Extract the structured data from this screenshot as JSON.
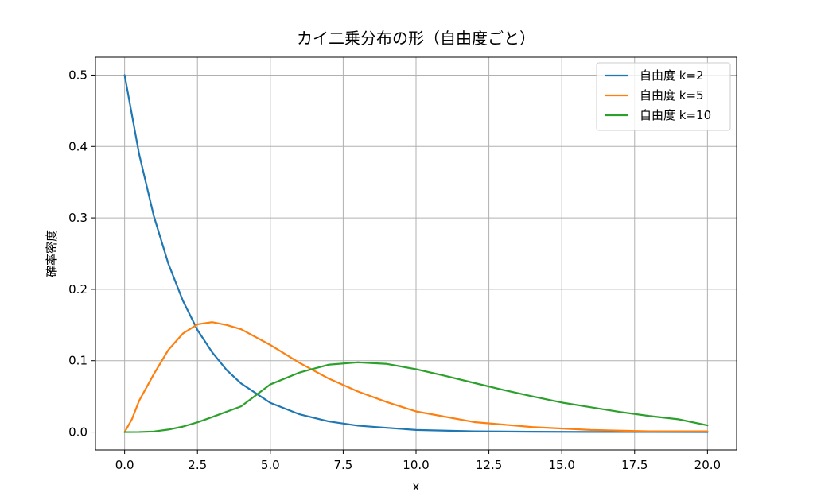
{
  "chart_data": {
    "type": "line",
    "title": "カイ二乗分布の形（自由度ごと）",
    "xlabel": "x",
    "ylabel": "確率密度",
    "xlim": [
      -1,
      21
    ],
    "ylim": [
      -0.025,
      0.525
    ],
    "xticks": [
      0.0,
      2.5,
      5.0,
      7.5,
      10.0,
      12.5,
      15.0,
      17.5,
      20.0
    ],
    "xtick_labels": [
      "0.0",
      "2.5",
      "5.0",
      "7.5",
      "10.0",
      "12.5",
      "15.0",
      "17.5",
      "20.0"
    ],
    "yticks": [
      0.0,
      0.1,
      0.2,
      0.3,
      0.4,
      0.5
    ],
    "ytick_labels": [
      "0.0",
      "0.1",
      "0.2",
      "0.3",
      "0.4",
      "0.5"
    ],
    "grid": true,
    "legend_position": "top-right",
    "series": [
      {
        "name": "自由度 k=2",
        "color": "#1f77b4",
        "x": [
          0,
          0.5,
          1,
          1.5,
          2,
          2.5,
          3,
          3.5,
          4,
          5,
          6,
          7,
          8,
          9,
          10,
          12,
          14,
          16,
          18,
          20
        ],
        "y": [
          0.5,
          0.389,
          0.303,
          0.236,
          0.184,
          0.143,
          0.112,
          0.087,
          0.068,
          0.041,
          0.025,
          0.015,
          0.009,
          0.006,
          0.003,
          0.001,
          0.0005,
          0.0002,
          0.0001,
          0.0
        ]
      },
      {
        "name": "自由度 k=5",
        "color": "#ff7f0e",
        "x": [
          0,
          0.25,
          0.5,
          1,
          1.5,
          2,
          2.5,
          3,
          3.5,
          4,
          5,
          6,
          7,
          8,
          9,
          10,
          12,
          14,
          16,
          18,
          20
        ],
        "y": [
          0.0,
          0.018,
          0.044,
          0.081,
          0.115,
          0.138,
          0.151,
          0.154,
          0.15,
          0.144,
          0.122,
          0.097,
          0.075,
          0.057,
          0.042,
          0.029,
          0.014,
          0.007,
          0.003,
          0.001,
          0.001
        ]
      },
      {
        "name": "自由度 k=10",
        "color": "#2ca02c",
        "x": [
          0,
          0.5,
          1,
          1.5,
          2,
          2.5,
          3,
          4,
          5,
          6,
          7,
          8,
          9,
          10,
          11,
          12,
          13,
          14,
          15,
          16,
          17,
          18,
          19,
          20
        ],
        "y": [
          0.0,
          0.0001,
          0.0008,
          0.0035,
          0.0077,
          0.0137,
          0.021,
          0.0361,
          0.0668,
          0.0834,
          0.0944,
          0.0977,
          0.0955,
          0.0881,
          0.0787,
          0.0688,
          0.059,
          0.05,
          0.0414,
          0.0348,
          0.0282,
          0.0226,
          0.018,
          0.0094
        ]
      }
    ]
  }
}
